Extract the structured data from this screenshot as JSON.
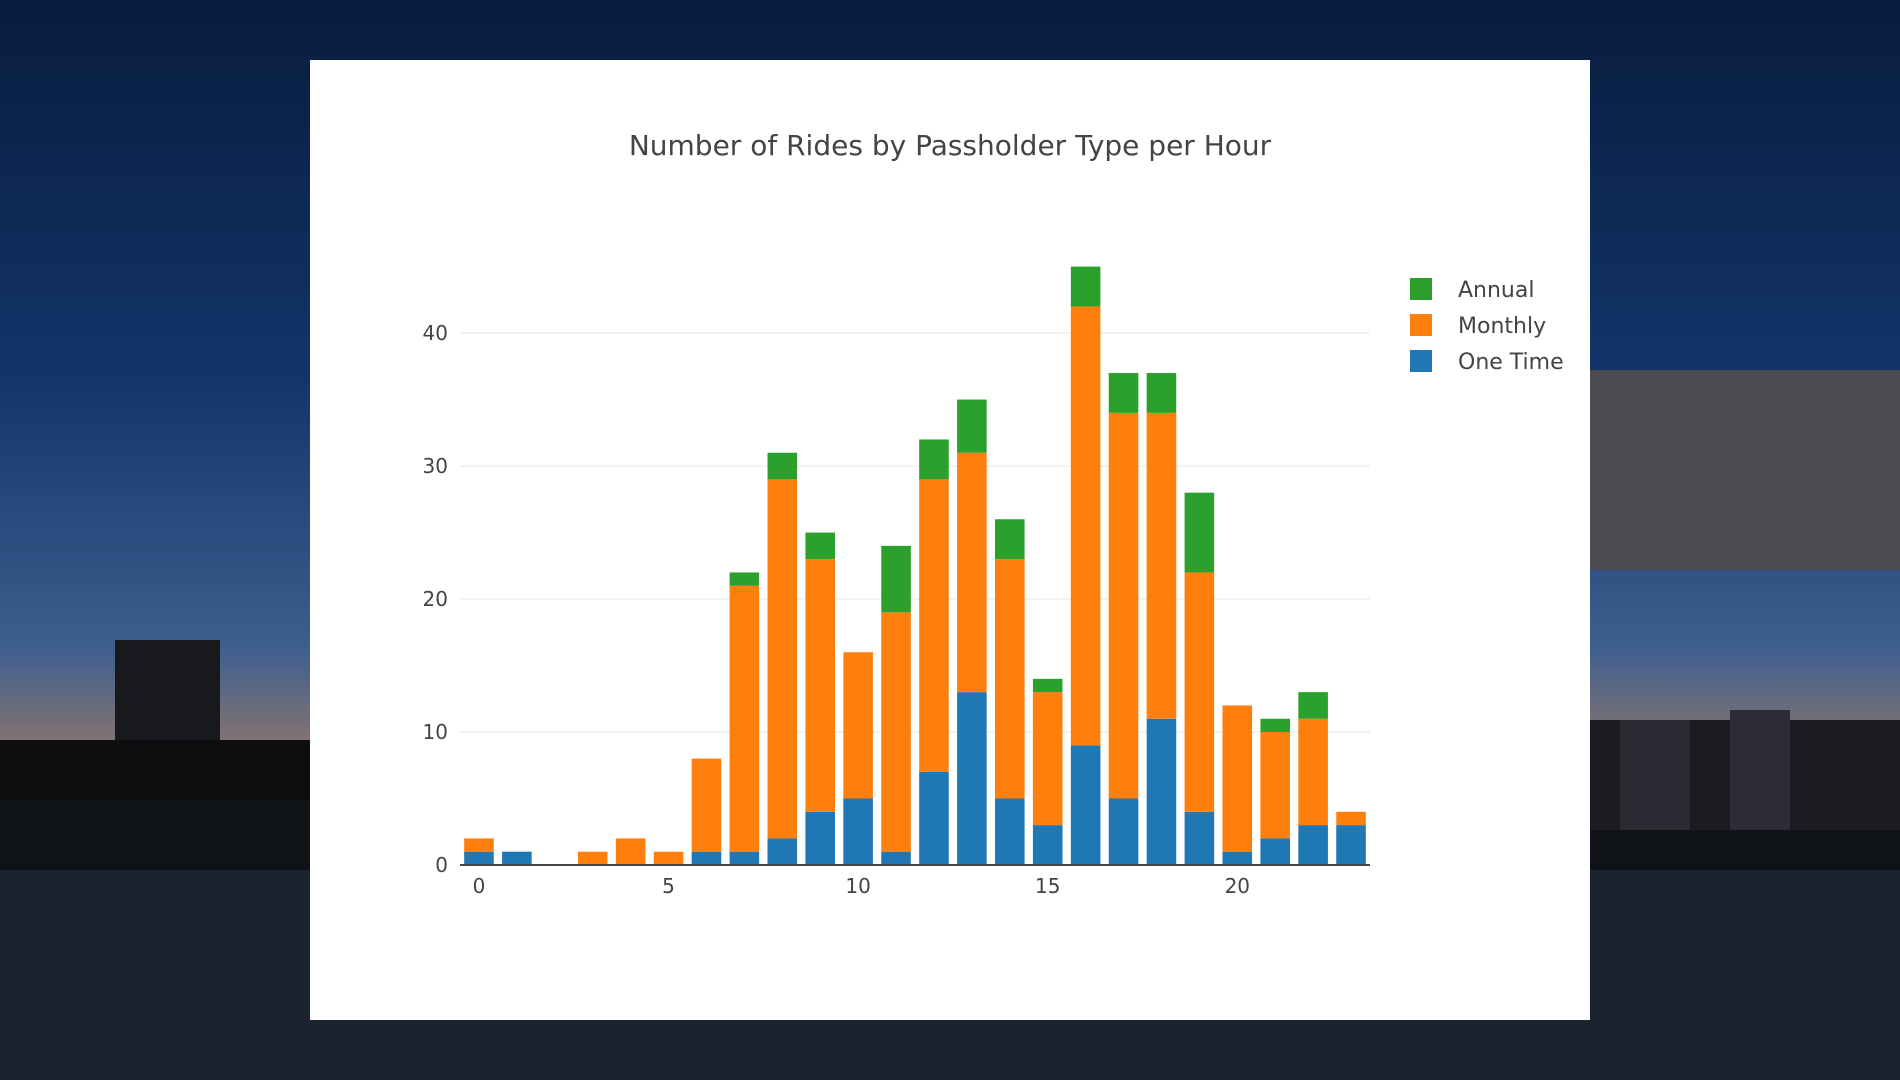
{
  "colors": {
    "annual": "#2ca02c",
    "monthly": "#ff7f0e",
    "one_time": "#1f77b4",
    "grid": "#eeeeee",
    "axis": "#444444"
  },
  "chart_data": {
    "type": "bar",
    "stacked": true,
    "title": "Number of Rides by Passholder Type per Hour",
    "xlabel": "",
    "ylabel": "",
    "x": [
      0,
      1,
      2,
      3,
      4,
      5,
      6,
      7,
      8,
      9,
      10,
      11,
      12,
      13,
      14,
      15,
      16,
      17,
      18,
      19,
      20,
      21,
      22,
      23
    ],
    "xticks": [
      0,
      5,
      10,
      15,
      20
    ],
    "yticks": [
      0,
      10,
      20,
      30,
      40
    ],
    "xlim": [
      -0.5,
      23.5
    ],
    "ylim": [
      0,
      47
    ],
    "grid": true,
    "legend_position": "top-right",
    "series": [
      {
        "name": "One Time",
        "color": "#1f77b4",
        "values": [
          1,
          1,
          0,
          0,
          0,
          0,
          1,
          1,
          2,
          4,
          5,
          1,
          7,
          13,
          5,
          3,
          9,
          5,
          11,
          4,
          1,
          2,
          3,
          3
        ]
      },
      {
        "name": "Monthly",
        "color": "#ff7f0e",
        "values": [
          1,
          0,
          0,
          1,
          2,
          1,
          7,
          20,
          27,
          19,
          11,
          18,
          22,
          18,
          18,
          10,
          33,
          29,
          23,
          18,
          11,
          8,
          8,
          1
        ]
      },
      {
        "name": "Annual",
        "color": "#2ca02c",
        "values": [
          0,
          0,
          0,
          0,
          0,
          0,
          0,
          1,
          2,
          2,
          0,
          5,
          3,
          4,
          3,
          1,
          3,
          3,
          3,
          6,
          0,
          1,
          2,
          0
        ]
      }
    ],
    "legend": [
      "Annual",
      "Monthly",
      "One Time"
    ]
  }
}
